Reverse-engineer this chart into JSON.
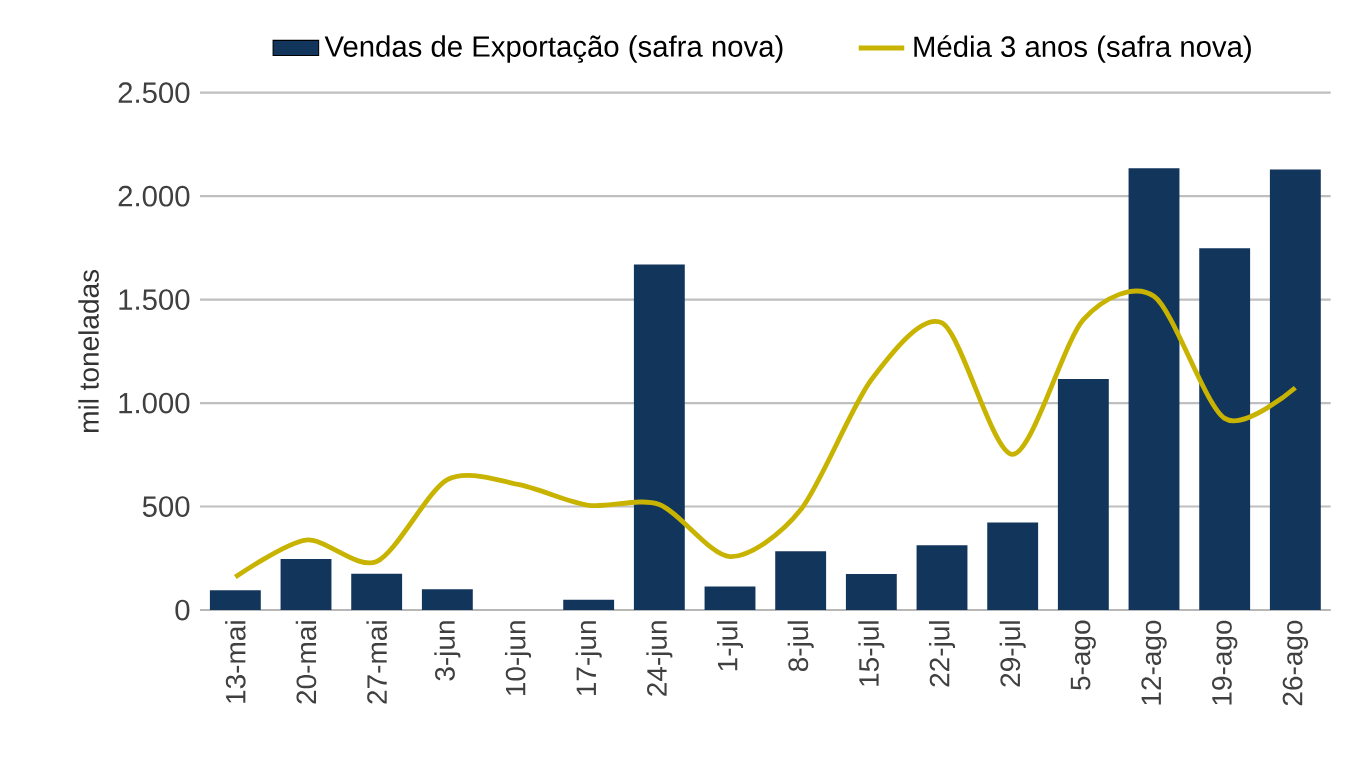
{
  "chart_data": {
    "type": "bar",
    "ylabel": "mil toneladas",
    "categories": [
      "13-mai",
      "20-mai",
      "27-mai",
      "3-jun",
      "10-jun",
      "17-jun",
      "24-jun",
      "1-jul",
      "8-jul",
      "15-jul",
      "22-jul",
      "29-jul",
      "5-ago",
      "12-ago",
      "19-ago",
      "26-ago"
    ],
    "series": [
      {
        "name": "Vendas de Exportação (safra nova)",
        "color": "#12355b",
        "values": [
          95,
          247,
          175,
          100,
          null,
          49,
          1670,
          113,
          284,
          174,
          313,
          423,
          1116,
          2135,
          1748,
          2129
        ]
      },
      {
        "name": "Média 3 anos (safra nova)",
        "type": "line",
        "color": "#c8b400",
        "values": [
          159,
          338,
          234,
          630,
          607,
          506,
          510,
          258,
          484,
          1113,
          1387,
          752,
          1403,
          1516,
          926,
          1074
        ]
      }
    ],
    "ylim": [
      0,
      2500
    ],
    "yticks": [
      {
        "value": 0,
        "label": "0"
      },
      {
        "value": 500,
        "label": "500"
      },
      {
        "value": 1000,
        "label": "1.000"
      },
      {
        "value": 1500,
        "label": "1.500"
      },
      {
        "value": 2000,
        "label": "2.000"
      },
      {
        "value": 2500,
        "label": "2.500"
      }
    ],
    "grid": "y",
    "legend": "top"
  }
}
